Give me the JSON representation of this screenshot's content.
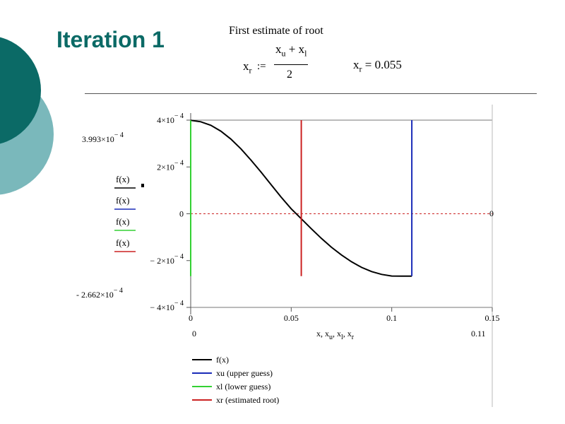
{
  "slide": {
    "title": "Iteration 1",
    "colors": {
      "title": "#0b6a66",
      "circle_dark": "#0b6a66",
      "circle_light": "#7ab8bb"
    }
  },
  "formula": {
    "heading": "First estimate of root",
    "lhs_base": "x",
    "lhs_sub": "r",
    "assign": ":=",
    "num_a_base": "x",
    "num_a_sub": "u",
    "num_plus": "+",
    "num_b_base": "x",
    "num_b_sub": "l",
    "denominator": "2",
    "result_base": "x",
    "result_sub": "r",
    "result_eq": "=",
    "result_value": "0.055"
  },
  "chart_data": {
    "type": "line",
    "xlim": [
      0,
      0.15
    ],
    "ylim": [
      -0.0004,
      0.0004
    ],
    "grid": false,
    "legend_position": "bottom-left",
    "x_ticks": [
      "0",
      "0.05",
      "0.1",
      "0.15"
    ],
    "x_tick_values": [
      0,
      0.05,
      0.1,
      0.15
    ],
    "y_ticks": [
      {
        "value": 0.0004,
        "mant": "4×10",
        "exp": "− 4"
      },
      {
        "value": 0.0002,
        "mant": "2×10",
        "exp": "− 4"
      },
      {
        "value": 0,
        "mant": "0",
        "exp": ""
      },
      {
        "value": -0.0002,
        "mant": "− 2×10",
        "exp": "− 4"
      },
      {
        "value": -0.0004,
        "mant": "− 4×10",
        "exp": "− 4"
      }
    ],
    "y_range_labels": {
      "top_mant": "3.993×10",
      "top_exp": "− 4",
      "bottom_mant": "- 2.662×10",
      "bottom_exp": "− 4"
    },
    "x_range_labels": {
      "left": "0",
      "right": "0.11"
    },
    "x_axis_label": {
      "parts": [
        {
          "base": "x",
          "sub": ""
        },
        {
          "base": "x",
          "sub": "u"
        },
        {
          "base": "x",
          "sub": "l"
        },
        {
          "base": "x",
          "sub": "r"
        }
      ],
      "sep": ","
    },
    "y_axis_labels": [
      "f(x)",
      "f(x)",
      "f(x)",
      "f(x)"
    ],
    "right_zero_label": "0",
    "series": [
      {
        "name": "f(x)",
        "color": "#000000",
        "x": [
          0,
          0.005,
          0.01,
          0.015,
          0.02,
          0.025,
          0.03,
          0.035,
          0.04,
          0.045,
          0.05,
          0.055,
          0.06,
          0.065,
          0.07,
          0.075,
          0.08,
          0.085,
          0.09,
          0.095,
          0.1,
          0.105,
          0.11
        ],
        "y": [
          0.0003993,
          0.000393,
          0.000378,
          0.000353,
          0.000319,
          0.000277,
          0.000229,
          0.000178,
          0.000124,
          7.1e-05,
          2.13e-05,
          -2.13e-05,
          -6.4e-05,
          -0.000105,
          -0.000143,
          -0.000176,
          -0.000205,
          -0.000229,
          -0.000247,
          -0.000259,
          -0.000266,
          -0.0002662,
          -0.0002662
        ]
      },
      {
        "name": "xu (upper guess)",
        "color": "#1a2bb8",
        "x": [
          0.11,
          0.11
        ],
        "y": [
          -0.0002662,
          0.0004
        ]
      },
      {
        "name": "xl (lower guess)",
        "color": "#33d133",
        "x": [
          0,
          0
        ],
        "y": [
          -0.0002662,
          0.0003993
        ]
      },
      {
        "name": "xr (estimated root)",
        "color": "#cc2222",
        "x": [
          0.055,
          0.055
        ],
        "y": [
          -0.0002662,
          0.0004
        ]
      }
    ],
    "threshold_line": {
      "y": 0,
      "color": "#cc2222",
      "style": "dashed"
    }
  }
}
